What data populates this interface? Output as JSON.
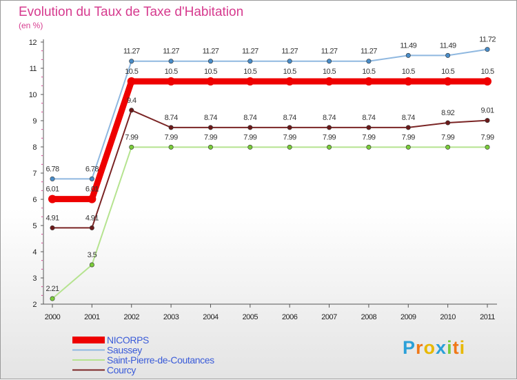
{
  "header": {
    "title": "Evolution du Taux de Taxe d'Habitation",
    "subtitle": "(en %)"
  },
  "chart_data": {
    "type": "line",
    "title": "Evolution du Taux de Taxe d'Habitation",
    "ylabel": "(en %)",
    "xlabel": "",
    "ylim": [
      2,
      12
    ],
    "yticks": [
      2,
      3,
      4,
      5,
      6,
      7,
      8,
      9,
      10,
      11,
      12
    ],
    "categories": [
      "2000",
      "2001",
      "2002",
      "2003",
      "2004",
      "2005",
      "2006",
      "2007",
      "2008",
      "2009",
      "2010",
      "2011"
    ],
    "legend_position": "bottom-left",
    "series": [
      {
        "name": "Saussey",
        "color": "#4a8dc8",
        "line_color": "#8fb8e0",
        "values": [
          6.78,
          6.78,
          11.27,
          11.27,
          11.27,
          11.27,
          11.27,
          11.27,
          11.27,
          11.49,
          11.49,
          11.72
        ],
        "labels": [
          "6.78",
          "6.78",
          "11.27",
          "11.27",
          "11.27",
          "11.27",
          "11.27",
          "11.27",
          "11.27",
          "11.49",
          "11.49",
          "11.72"
        ]
      },
      {
        "name": "Courcy",
        "color": "#6b1a1a",
        "line_color": "#7a2424",
        "values": [
          4.91,
          4.91,
          9.4,
          8.74,
          8.74,
          8.74,
          8.74,
          8.74,
          8.74,
          8.74,
          8.92,
          9.01
        ],
        "labels": [
          "4.91",
          "4.91",
          "9.4",
          "8.74",
          "8.74",
          "8.74",
          "8.74",
          "8.74",
          "8.74",
          "8.74",
          "8.92",
          "9.01"
        ]
      },
      {
        "name": "Saint-Pierre-de-Coutances",
        "color": "#7acc3a",
        "line_color": "#b5e38f",
        "values": [
          2.21,
          3.5,
          7.99,
          7.99,
          7.99,
          7.99,
          7.99,
          7.99,
          7.99,
          7.99,
          7.99,
          7.99
        ],
        "labels": [
          "2.21",
          "3.5",
          "7.99",
          "7.99",
          "7.99",
          "7.99",
          "7.99",
          "7.99",
          "7.99",
          "7.99",
          "7.99",
          "7.99"
        ]
      },
      {
        "name": "NICORPS",
        "color": "#ee0000",
        "line_color": "#ee0000",
        "values": [
          6.01,
          6.01,
          10.5,
          10.5,
          10.5,
          10.5,
          10.5,
          10.5,
          10.5,
          10.5,
          10.5,
          10.5
        ],
        "labels": [
          "6.01",
          "6.01",
          "10.5",
          "10.5",
          "10.5",
          "10.5",
          "10.5",
          "10.5",
          "10.5",
          "10.5",
          "10.5",
          "10.5"
        ]
      }
    ],
    "legend": [
      "NICORPS",
      "Saussey",
      "Saint-Pierre-de-Coutances",
      "Courcy"
    ]
  },
  "brand": {
    "logo_letters": [
      "P",
      "r",
      "o",
      "x",
      "i",
      "t",
      "i"
    ],
    "logo_colors": [
      "#2aa0d8",
      "#f07818",
      "#e8b800",
      "#2aa0d8",
      "#7acc3a",
      "#f07818",
      "#e8b800"
    ]
  }
}
